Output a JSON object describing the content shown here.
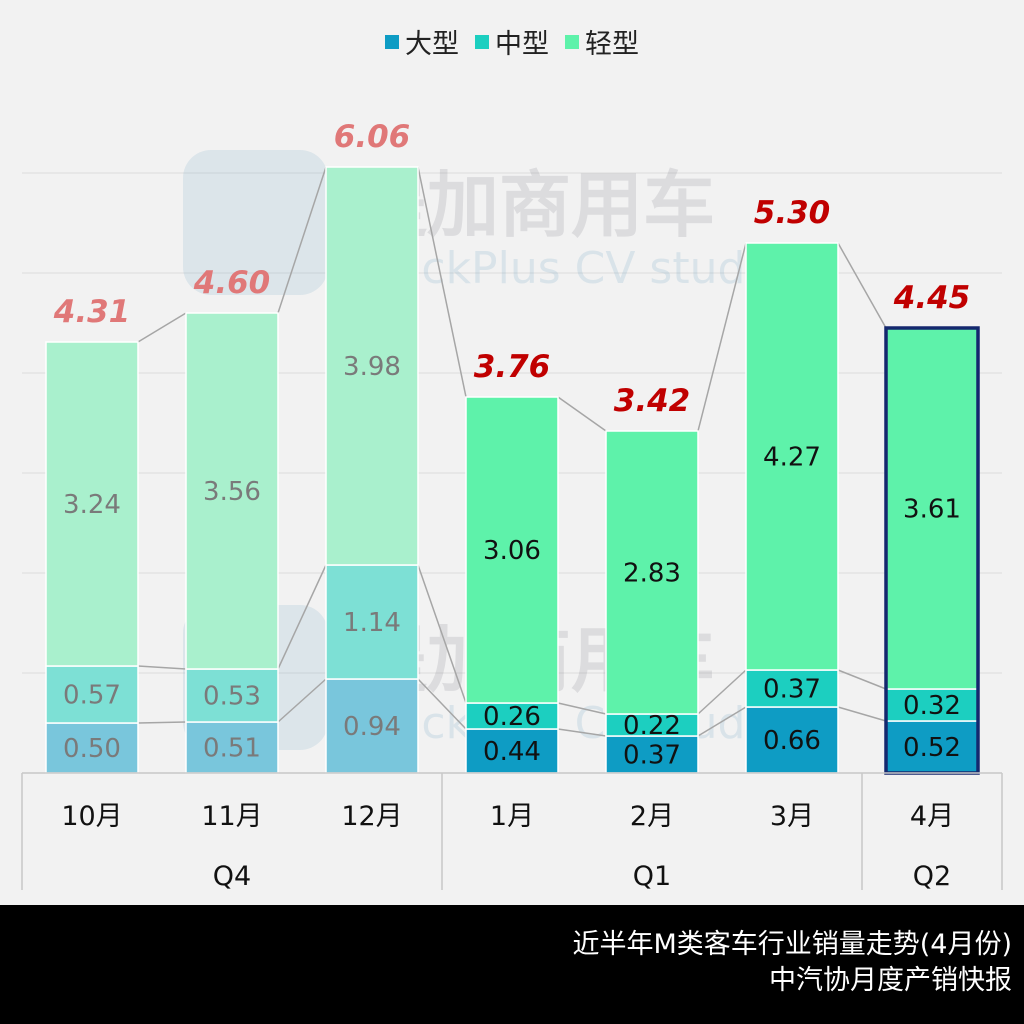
{
  "chart_data": {
    "type": "bar",
    "stacked": true,
    "categories": [
      "10月",
      "11月",
      "12月",
      "1月",
      "2月",
      "3月",
      "4月"
    ],
    "groups": [
      {
        "label": "Q4",
        "categories": [
          "10月",
          "11月",
          "12月"
        ]
      },
      {
        "label": "Q1",
        "categories": [
          "1月",
          "2月",
          "3月"
        ]
      },
      {
        "label": "Q2",
        "categories": [
          "4月"
        ]
      }
    ],
    "series": [
      {
        "name": "大型",
        "values": [
          0.5,
          0.51,
          0.94,
          0.44,
          0.37,
          0.66,
          0.52
        ],
        "color": "#0e9cc4",
        "faded_color": "#79c6dc"
      },
      {
        "name": "中型",
        "values": [
          0.57,
          0.53,
          1.14,
          0.26,
          0.22,
          0.37,
          0.32
        ],
        "color": "#1ccfc0",
        "faded_color": "#7de0d5"
      },
      {
        "name": "轻型",
        "values": [
          3.24,
          3.56,
          3.98,
          3.06,
          2.83,
          4.27,
          3.61
        ],
        "color": "#5ef2aa",
        "faded_color": "#a9f0cd"
      }
    ],
    "totals": [
      "4.31",
      "4.60",
      "6.06",
      "3.76",
      "3.42",
      "5.30",
      "4.45"
    ],
    "faded_categories": [
      "10月",
      "11月",
      "12月"
    ],
    "highlighted_category": "4月",
    "ylim": [
      0,
      6
    ],
    "grid": true,
    "legend_position": "top",
    "colors": {
      "total_faded": "#e07878",
      "total": "#c00000",
      "highlight_border": "#14286e",
      "connector": "#a6a6a6"
    }
  },
  "watermark": {
    "cn": "提加商用车",
    "en": "TruckPlus CV studio"
  },
  "footer": {
    "line1": "近半年M类客车行业销量走势(4月份)",
    "line2": "中汽协月度产销快报"
  }
}
